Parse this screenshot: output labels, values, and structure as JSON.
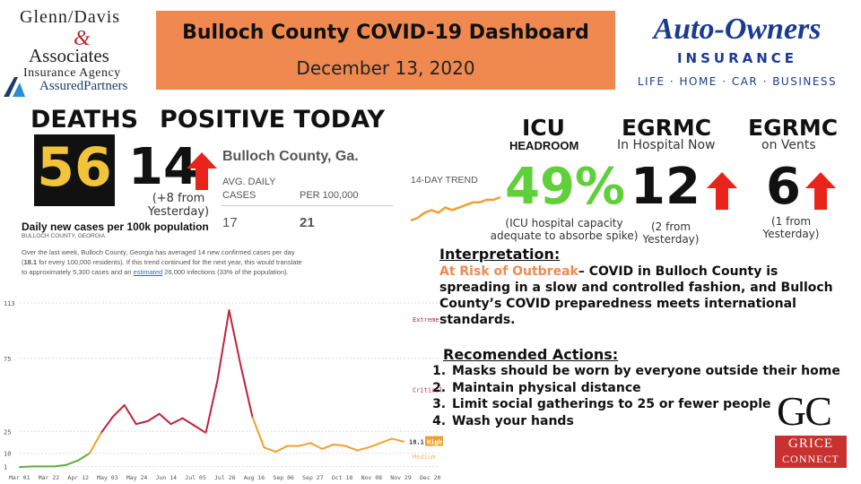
{
  "logo_left": {
    "line1": "Glenn/Davis",
    "ampersand": "&",
    "line2": "Associates",
    "line3": "Insurance Agency",
    "line4": "AssuredPartners"
  },
  "header": {
    "title": "Bulloch County COVID-19 Dashboard",
    "date": "December 13, 2020"
  },
  "logo_right": {
    "line1": "Auto-Owners",
    "line2": "INSURANCE",
    "line3": "LIFE · HOME · CAR · BUSINESS"
  },
  "deaths": {
    "label": "DEATHS",
    "value": "56"
  },
  "positive": {
    "label": "POSITIVE TODAY",
    "value": "14",
    "note": "(+8 from Yesterday)"
  },
  "county_panel": {
    "name": "Bulloch County, Ga.",
    "col1_header": "AVG. DAILY CASES",
    "col2_header": "PER 100,000",
    "col1_value": "17",
    "col2_value": "21",
    "trend_label": "14-DAY TREND",
    "chart_title": "Daily new cases per 100k population",
    "chart_subtitle": "BULLOCH COUNTY, GEORGIA",
    "desc_pre": "Over the last week, Bulloch County, Georgia has averaged 14 new confirmed cases per day (",
    "desc_bold": "18.1",
    "desc_mid": " for every 100,000 residents). If this trend continued for the next year, this would translate to approximately 5,300 cases and an ",
    "desc_link": "estimated",
    "desc_post": " 26,000 infections (33% of the population)."
  },
  "metrics": {
    "icu": {
      "head": "ICU",
      "sub": "HEADROOM",
      "value": "49%",
      "note": "(ICU hospital capacity adequate to absorbe spike)"
    },
    "hospital": {
      "head": "EGRMC",
      "sub": "In Hospital Now",
      "value": "12",
      "note": "(2 from Yesterday)"
    },
    "vents": {
      "head": "EGRMC",
      "sub": "on Vents",
      "value": "6",
      "note": "(1 from Yesterday)"
    }
  },
  "interpretation": {
    "heading": "Interpretation:",
    "risk": "At Risk of Outbreak",
    "text": "– COVID in Bulloch County is spreading in a slow and controlled fashion, and Bulloch County’s COVID preparedness meets international standards."
  },
  "actions": {
    "heading": "Recomended Actions:",
    "items": [
      "Masks should be worn by everyone outside their home",
      "Maintain physical distance",
      "Limit social gatherings to 25 or fewer people",
      "Wash your hands"
    ]
  },
  "grice": {
    "mark": "GC",
    "line1": "GRICE",
    "line2": "CONNECT"
  },
  "colors": {
    "orange": "#f0894f",
    "green": "#5fcf3a",
    "red": "#e8241a",
    "navy": "#1a3b8f",
    "gold": "#f2c43a"
  },
  "chart_data": {
    "type": "line",
    "title": "Daily new cases per 100k population",
    "subtitle": "BULLOCH COUNTY, GEORGIA",
    "x_ticks": [
      "Mar 01",
      "Mar 22",
      "Apr 12",
      "May 03",
      "May 24",
      "Jun 14",
      "Jul 05",
      "Jul 26",
      "Aug 16",
      "Sep 06",
      "Sep 27",
      "Oct 18",
      "Nov 08",
      "Nov 29",
      "Dec 20"
    ],
    "y_ticks": [
      "113",
      "75",
      "25",
      "10",
      "1"
    ],
    "ylim": [
      0,
      113
    ],
    "zones": [
      "Extreme",
      "Critical",
      "High",
      "Medium"
    ],
    "current_value": "18.1",
    "current_zone": "High",
    "x": [
      "Mar 01",
      "Mar 22",
      "Apr 12",
      "May 03",
      "May 24",
      "Jun 07",
      "Jun 14",
      "Jun 21",
      "Jun 28",
      "Jul 05",
      "Jul 12",
      "Jul 19",
      "Jul 26",
      "Aug 02",
      "Aug 09",
      "Aug 16",
      "Aug 23",
      "Aug 30",
      "Sep 03",
      "Sep 06",
      "Sep 13",
      "Sep 20",
      "Sep 27",
      "Oct 04",
      "Oct 11",
      "Oct 18",
      "Oct 25",
      "Nov 01",
      "Nov 08",
      "Nov 15",
      "Nov 22",
      "Nov 29",
      "Dec 06",
      "Dec 13"
    ],
    "values": [
      0.5,
      1,
      1,
      1,
      2,
      5,
      10,
      24,
      35,
      43,
      30,
      32,
      37,
      30,
      34,
      29,
      24,
      60,
      108,
      70,
      35,
      14,
      11,
      15,
      15,
      17,
      13,
      16,
      15,
      12,
      14,
      17,
      20,
      18
    ],
    "trend_values": [
      10,
      11,
      13,
      14,
      13,
      15,
      14,
      15,
      16,
      17,
      17,
      18,
      18,
      19
    ]
  }
}
